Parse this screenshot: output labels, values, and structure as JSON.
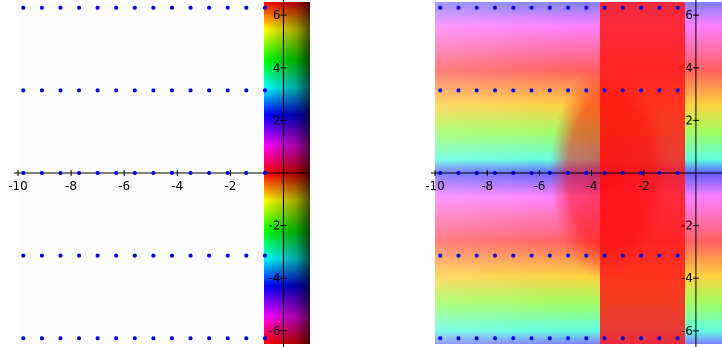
{
  "chart_data": [
    {
      "type": "heatmap",
      "title": "",
      "xlabel": "",
      "ylabel": "",
      "xlim": [
        -10,
        1
      ],
      "ylim": [
        -6.5,
        6.5
      ],
      "x_ticks": [
        -10,
        -8,
        -6,
        -4,
        -2
      ],
      "y_ticks": [
        -6,
        -4,
        -2,
        2,
        4,
        6
      ],
      "grid": false,
      "coloring": "complex phase (hue) with brightness by modulus",
      "colored_region_x_min": -0.6,
      "left_region": "near-white",
      "marker_color": "#0000dd",
      "marker_rows_y": [
        6.28,
        3.14,
        0,
        -3.14,
        -6.28
      ],
      "marker_x": [
        -9.8,
        -9.1,
        -8.4,
        -7.7,
        -7.0,
        -6.3,
        -5.6,
        -4.9,
        -4.2,
        -3.5,
        -2.8,
        -2.1,
        -1.4,
        -0.7
      ]
    },
    {
      "type": "heatmap",
      "title": "",
      "xlabel": "",
      "ylabel": "",
      "xlim": [
        -10,
        1
      ],
      "ylim": [
        -6.5,
        6.5
      ],
      "x_ticks": [
        -10,
        -8,
        -6,
        -4,
        -2
      ],
      "y_ticks": [
        -6,
        -4,
        -2,
        2,
        4,
        6
      ],
      "grid": false,
      "coloring": "complex phase (hue) with brightness by modulus",
      "branch_point_x": -3.8,
      "marker_color": "#0000dd",
      "marker_rows_y": [
        6.28,
        3.14,
        0,
        -3.14,
        -6.28
      ],
      "marker_x": [
        -9.8,
        -9.1,
        -8.4,
        -7.7,
        -7.0,
        -6.3,
        -5.6,
        -4.9,
        -4.2,
        -3.5,
        -2.8,
        -2.1,
        -1.4,
        -0.7
      ]
    }
  ]
}
